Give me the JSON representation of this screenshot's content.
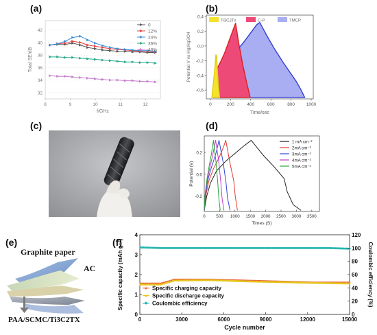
{
  "labels": {
    "a": "(a)",
    "b": "(b)",
    "c": "(c)",
    "d": "(d)",
    "e": "(e)",
    "f": "(f)"
  },
  "chart_data": [
    {
      "id": "a",
      "type": "line",
      "xlabel": "f/GHz",
      "ylabel": "Total SE/dB",
      "xlim": [
        8,
        12.6
      ],
      "ylim": [
        31,
        43.5
      ],
      "xticks": [
        8,
        9,
        10,
        11,
        12
      ],
      "yticks": [
        32,
        34,
        36,
        38,
        40,
        42
      ],
      "x": [
        8.2,
        8.5,
        8.8,
        9.1,
        9.4,
        9.7,
        10.0,
        10.3,
        10.6,
        10.9,
        11.2,
        11.5,
        11.8,
        12.1,
        12.4
      ],
      "series": [
        {
          "name": "0",
          "color": "#555555",
          "marker": "triangle-right",
          "values": [
            39.6,
            39.7,
            39.7,
            39.9,
            39.6,
            39.2,
            39.0,
            38.8,
            38.7,
            38.6,
            38.6,
            38.5,
            38.5,
            38.4,
            38.4
          ]
        },
        {
          "name": "12%",
          "color": "#e8413c",
          "marker": "triangle-right",
          "values": [
            39.6,
            39.8,
            39.9,
            40.2,
            40.0,
            39.6,
            39.4,
            39.2,
            39.0,
            38.9,
            38.8,
            38.7,
            38.6,
            38.6,
            38.5
          ]
        },
        {
          "name": "24%",
          "color": "#3a8fd9",
          "marker": "triangle-right",
          "values": [
            39.6,
            39.8,
            40.2,
            40.8,
            41.0,
            40.4,
            39.9,
            39.5,
            39.2,
            39.0,
            38.9,
            38.8,
            38.7,
            38.7,
            38.6
          ]
        },
        {
          "name": "36%",
          "color": "#26a98a",
          "marker": "triangle-right",
          "values": [
            37.7,
            37.7,
            37.6,
            37.6,
            37.5,
            37.4,
            37.3,
            37.2,
            37.1,
            37.0,
            36.9,
            36.9,
            36.8,
            36.8,
            36.7
          ]
        },
        {
          "name": "48%",
          "color": "#c77fd0",
          "marker": "triangle-right",
          "values": [
            34.7,
            34.6,
            34.6,
            34.5,
            34.4,
            34.3,
            34.2,
            34.1,
            34.0,
            34.0,
            33.9,
            33.9,
            33.8,
            33.8,
            33.7
          ]
        }
      ]
    },
    {
      "id": "b",
      "type": "area",
      "xlabel": "Time/sec",
      "ylabel": "Potential V vs Hg/HgSO4",
      "xlim": [
        -40,
        1020
      ],
      "ylim": [
        -0.72,
        0.42
      ],
      "xticks": [
        0,
        200,
        400,
        600,
        800,
        1000
      ],
      "yticks": [
        -0.6,
        -0.4,
        -0.2,
        0.0,
        0.2,
        0.4
      ],
      "series": [
        {
          "name": "Ti3C2Tx",
          "color": "#f5e22a",
          "edge": "#e0cc10",
          "x": [
            15,
            30,
            45,
            55,
            62,
            70,
            80,
            92
          ],
          "values": [
            -0.7,
            -0.5,
            -0.3,
            -0.12,
            -0.14,
            -0.35,
            -0.55,
            -0.7
          ]
        },
        {
          "name": "C-P",
          "color": "#ee4a78",
          "edge": "#d92020",
          "x": [
            25,
            45,
            70,
            100,
            140,
            180,
            220,
            250,
            280,
            320,
            360,
            395
          ],
          "values": [
            -0.7,
            -0.45,
            -0.3,
            -0.22,
            -0.1,
            0.05,
            0.2,
            0.31,
            0.05,
            -0.25,
            -0.5,
            -0.7
          ]
        },
        {
          "name": "TMCP",
          "color": "#a9aef2",
          "edge": "#2f3fd0",
          "x": [
            25,
            60,
            100,
            170,
            250,
            330,
            400,
            460,
            490,
            560,
            640,
            720,
            800,
            850,
            900,
            935
          ],
          "values": [
            -0.7,
            -0.46,
            -0.32,
            -0.22,
            -0.08,
            0.05,
            0.18,
            0.29,
            0.32,
            0.14,
            -0.05,
            -0.22,
            -0.38,
            -0.48,
            -0.6,
            -0.7
          ]
        }
      ]
    },
    {
      "id": "d",
      "type": "line",
      "xlabel": "Times (S)",
      "ylabel": "Potential (V)",
      "xlim": [
        0,
        3750
      ],
      "ylim": [
        -0.34,
        0.35
      ],
      "xticks": [
        0,
        500,
        1000,
        1500,
        2000,
        2500,
        3000,
        3500
      ],
      "yticks": [
        -0.2,
        0.0,
        0.2
      ],
      "series": [
        {
          "name": "1 mA cm⁻²",
          "color": "#222222",
          "x": [
            0,
            80,
            200,
            400,
            700,
            1000,
            1300,
            1530,
            1900,
            2300,
            2600,
            2700,
            2900,
            3150
          ],
          "values": [
            -0.33,
            -0.2,
            -0.08,
            0.03,
            0.12,
            0.19,
            0.26,
            0.31,
            0.18,
            0.06,
            -0.04,
            -0.16,
            -0.28,
            -0.33
          ]
        },
        {
          "name": "2mA cm⁻²",
          "color": "#e23b2e",
          "x": [
            0,
            60,
            150,
            300,
            480,
            640,
            700,
            840,
            960,
            1010,
            1080
          ],
          "values": [
            -0.33,
            -0.18,
            -0.06,
            0.05,
            0.15,
            0.26,
            0.31,
            0.1,
            -0.06,
            -0.2,
            -0.33
          ]
        },
        {
          "name": "3mA cm⁻²",
          "color": "#3046d4",
          "x": [
            0,
            45,
            110,
            230,
            370,
            480,
            620,
            710,
            760,
            840
          ],
          "values": [
            -0.33,
            -0.18,
            -0.06,
            0.06,
            0.18,
            0.31,
            0.1,
            -0.08,
            -0.22,
            -0.33
          ]
        },
        {
          "name": "4mA cm⁻²",
          "color": "#c23fc8",
          "x": [
            0,
            35,
            90,
            180,
            280,
            370,
            470,
            540,
            580,
            640
          ],
          "values": [
            -0.33,
            -0.18,
            -0.06,
            0.06,
            0.18,
            0.31,
            0.12,
            -0.08,
            -0.22,
            -0.33
          ]
        },
        {
          "name": "5mA cm⁻²",
          "color": "#2aa13c",
          "x": [
            0,
            30,
            80,
            150,
            230,
            300,
            380,
            440,
            475,
            520
          ],
          "values": [
            -0.33,
            -0.18,
            -0.06,
            0.06,
            0.18,
            0.31,
            0.12,
            -0.08,
            -0.22,
            -0.33
          ]
        }
      ]
    },
    {
      "id": "f",
      "type": "scatter",
      "xlabel": "Cycle number",
      "ylabel": "Specific capacity (mAh g⁻¹)",
      "y2label": "Coulombic efficiency (%)",
      "xlim": [
        0,
        15000
      ],
      "ylim": [
        0,
        4
      ],
      "y2lim": [
        0,
        120
      ],
      "xticks": [
        0,
        3000,
        6000,
        9000,
        12000,
        15000
      ],
      "yticks": [
        0,
        1,
        2,
        3,
        4
      ],
      "y2ticks": [
        0,
        20,
        40,
        60,
        80,
        100,
        120
      ],
      "series": [
        {
          "name": "Specific charging capacity",
          "color": "#e8613c",
          "marker": "star",
          "axis": "left",
          "x": [
            0,
            1500,
            2500,
            5000,
            7500,
            10000,
            12500,
            15000
          ],
          "values": [
            1.55,
            1.55,
            1.75,
            1.75,
            1.7,
            1.65,
            1.6,
            1.6
          ]
        },
        {
          "name": "Specific discharge capacity",
          "color": "#e6c619",
          "marker": "star",
          "axis": "left",
          "x": [
            0,
            1500,
            2500,
            5000,
            7500,
            10000,
            12500,
            15000
          ],
          "values": [
            1.5,
            1.5,
            1.7,
            1.72,
            1.66,
            1.62,
            1.58,
            1.55
          ]
        },
        {
          "name": "Coulombic efficiency",
          "color": "#25b5b0",
          "marker": "circle",
          "axis": "right",
          "x": [
            0,
            1500,
            3000,
            4500,
            6000,
            7500,
            9000,
            10500,
            12000,
            13500,
            15000
          ],
          "values": [
            101,
            100,
            100,
            100,
            100,
            100,
            100,
            100,
            100,
            100,
            99
          ]
        }
      ]
    }
  ],
  "schematic": {
    "graphite_paper": "Graphite paper",
    "ac": "AC",
    "electrolyte": "PAA/SCMC/Ti3C2TX"
  }
}
